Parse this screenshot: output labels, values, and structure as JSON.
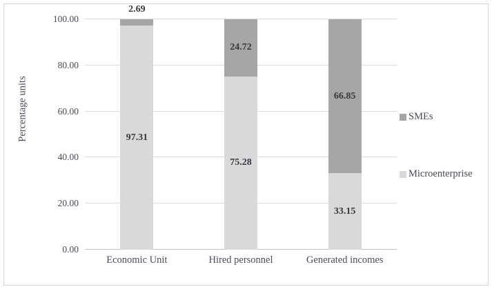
{
  "chart_data": {
    "type": "bar",
    "stacked": true,
    "title": "",
    "xlabel": "",
    "ylabel": "Percentage units",
    "ylim": [
      0,
      100
    ],
    "grid": true,
    "legend_position": "right",
    "categories": [
      "Economic Unit",
      "Hired personnel",
      "Generated incomes"
    ],
    "series": [
      {
        "name": "Microenterprise",
        "color": "#d9d9d9",
        "values": [
          97.31,
          75.28,
          33.15
        ]
      },
      {
        "name": "SMEs",
        "color": "#a6a6a6",
        "values": [
          2.69,
          24.72,
          66.85
        ]
      }
    ],
    "yticks": [
      {
        "value": 0,
        "label": "0.00"
      },
      {
        "value": 20,
        "label": "20.00"
      },
      {
        "value": 40,
        "label": "40.00"
      },
      {
        "value": 60,
        "label": "60.00"
      },
      {
        "value": 80,
        "label": "80.00"
      },
      {
        "value": 100,
        "label": "100.00"
      }
    ],
    "legend": [
      "SMEs",
      "Microenterprise"
    ],
    "colors": {
      "grid": "#d9d9d9",
      "axis_line": "#bfbfbf",
      "axis_text": "#4a4b58",
      "data_label_text": "#38383f",
      "frame_border": "#d5d5d5",
      "background": "#ffffff"
    }
  }
}
